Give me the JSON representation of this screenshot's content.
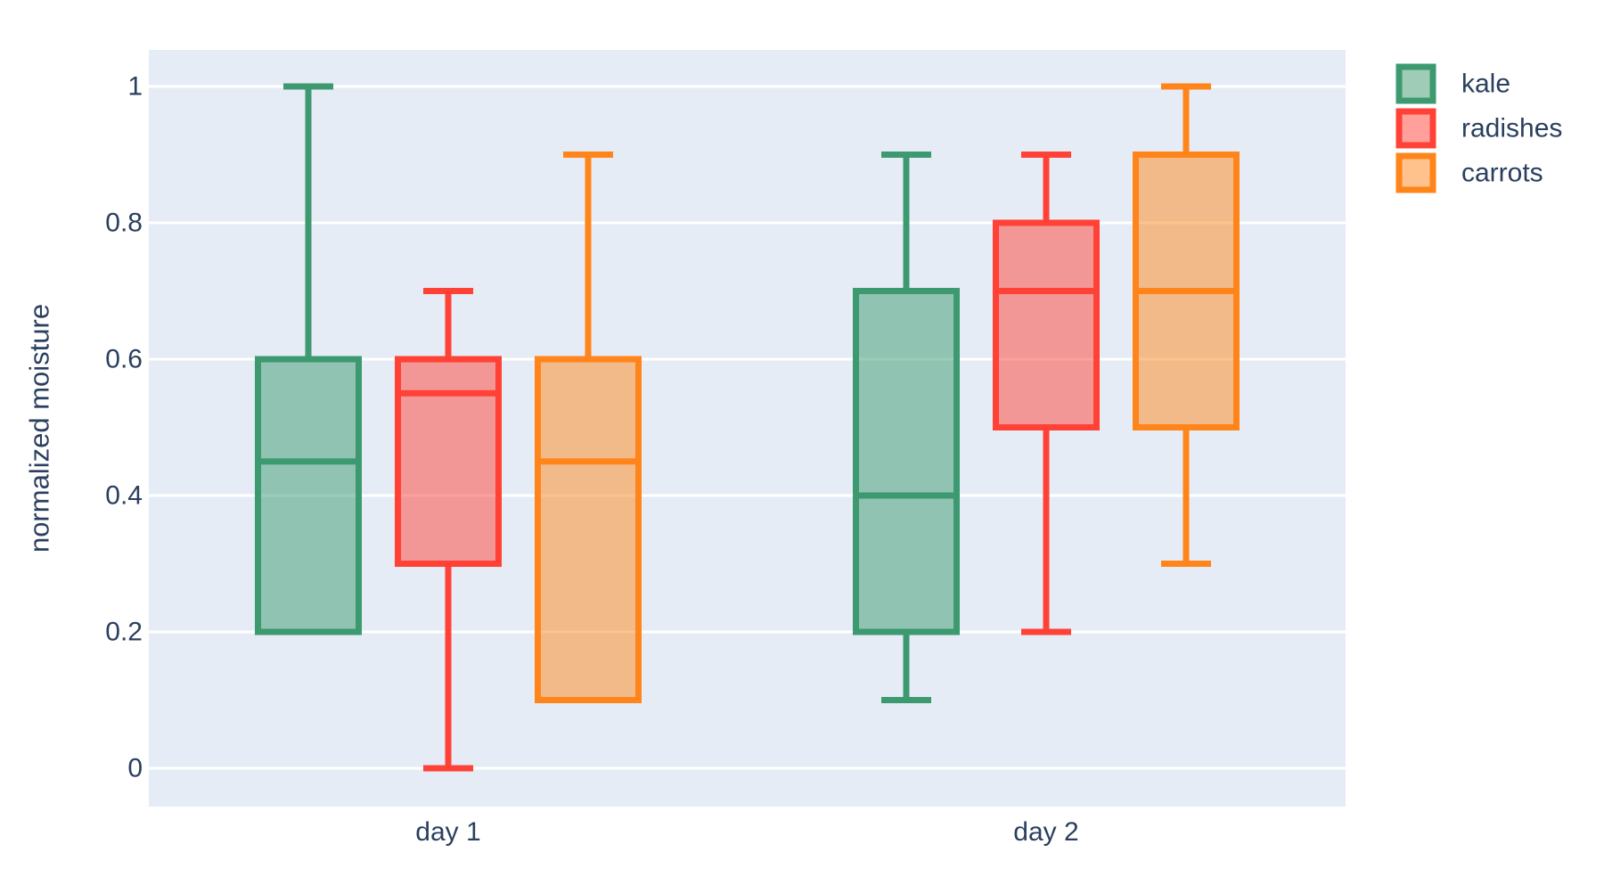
{
  "chart_data": {
    "type": "box",
    "orientation": "vertical",
    "boxmode": "group",
    "title": "",
    "xlabel": "",
    "ylabel": "normalized moisture",
    "categories": [
      "day 1",
      "day 2"
    ],
    "ytick_labels": [
      "0",
      "0.2",
      "0.4",
      "0.6",
      "0.8",
      "1"
    ],
    "ytick_values": [
      0,
      0.2,
      0.4,
      0.6,
      0.8,
      1
    ],
    "ylim": [
      -0.056,
      1.054
    ],
    "grid": true,
    "legend": {
      "position": "top-right",
      "entries": [
        "kale",
        "radishes",
        "carrots"
      ]
    },
    "series": [
      {
        "name": "kale",
        "color": "#3D9970",
        "boxes": [
          {
            "category": "day 1",
            "min": 0.2,
            "q1": 0.2,
            "median": 0.45,
            "q3": 0.6,
            "max": 1.0
          },
          {
            "category": "day 2",
            "min": 0.1,
            "q1": 0.2,
            "median": 0.4,
            "q3": 0.7,
            "max": 0.9
          }
        ]
      },
      {
        "name": "radishes",
        "color": "#FF4136",
        "boxes": [
          {
            "category": "day 1",
            "min": 0.0,
            "q1": 0.3,
            "median": 0.55,
            "q3": 0.6,
            "max": 0.7
          },
          {
            "category": "day 2",
            "min": 0.2,
            "q1": 0.5,
            "median": 0.7,
            "q3": 0.8,
            "max": 0.9
          }
        ]
      },
      {
        "name": "carrots",
        "color": "#FF851B",
        "boxes": [
          {
            "category": "day 1",
            "min": 0.1,
            "q1": 0.1,
            "median": 0.45,
            "q3": 0.6,
            "max": 0.9
          },
          {
            "category": "day 2",
            "min": 0.3,
            "q1": 0.5,
            "median": 0.7,
            "q3": 0.9,
            "max": 1.0
          }
        ]
      }
    ]
  },
  "colors": {
    "page_background": "#FFFFFF",
    "plot_background": "#E5ECF6",
    "gridline": "#FFFFFF",
    "text": "#2A3F5F"
  }
}
